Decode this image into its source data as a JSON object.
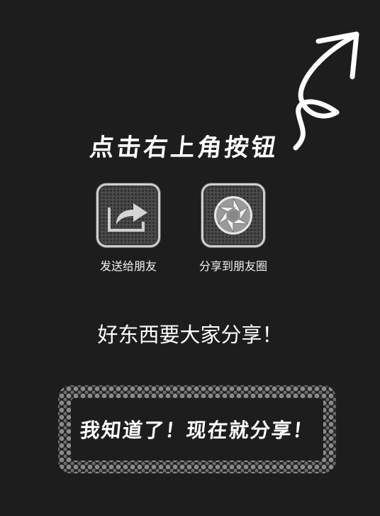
{
  "header": {
    "instruction": "点击右上角按钮"
  },
  "share_options": [
    {
      "label": "发送给朋友",
      "icon": "share-arrow-icon"
    },
    {
      "label": "分享到朋友圈",
      "icon": "camera-shutter-icon"
    }
  ],
  "tagline": "好东西要大家分享！",
  "confirm_button": {
    "label": "我知道了！现在就分享！"
  },
  "colors": {
    "background": "#1d1d1d",
    "text": "#ffffff",
    "dots": "#8a8a8a"
  }
}
